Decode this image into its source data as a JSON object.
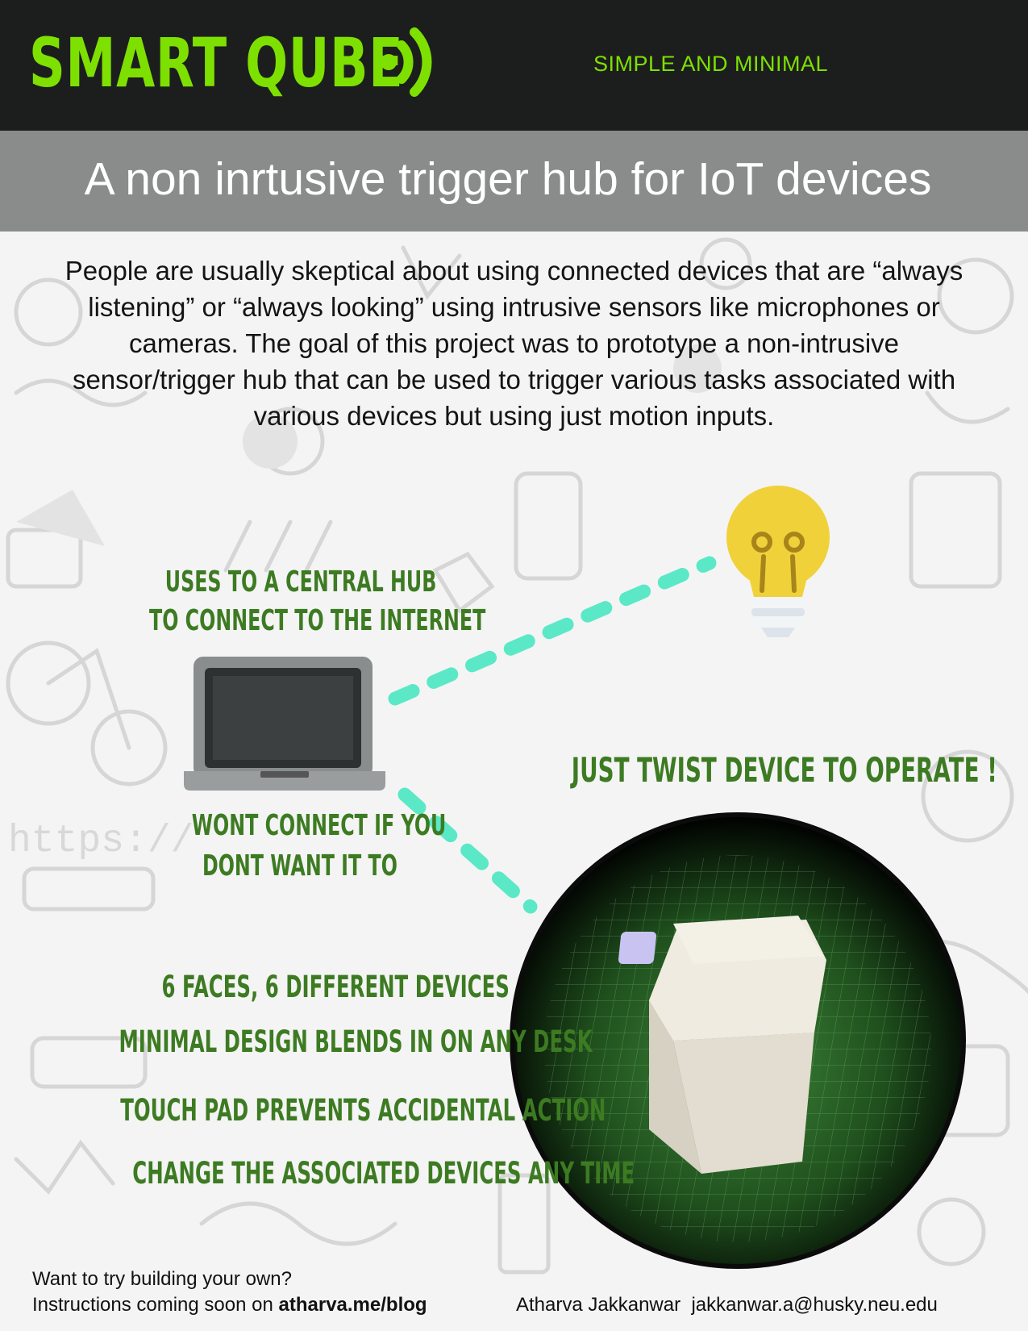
{
  "header": {
    "brand": "SMART QUBE",
    "tagline": "SIMPLE AND MINIMAL"
  },
  "banner": {
    "subtitle": "A non inrtusive trigger hub for IoT devices"
  },
  "intro": {
    "paragraph": "People are usually skeptical about using connected devices that are “always listening” or “always looking” using intrusive sensors like microphones or cameras. The goal of this project was to prototype a non-intrusive sensor/trigger hub that can be used to trigger various tasks associated with various devices but using just motion inputs."
  },
  "diagram": {
    "hub_label_line1": "USES TO A CENTRAL HUB",
    "hub_label_line2": "TO CONNECT TO THE INTERNET",
    "privacy_label_line1": "WONT CONNECT IF YOU",
    "privacy_label_line2": "DONT WANT IT TO",
    "operate_label": "JUST TWIST DEVICE TO OPERATE !",
    "background_doodle_text": "https://"
  },
  "features": [
    "6 FACES, 6 DIFFERENT DEVICES",
    "MINIMAL DESIGN BLENDS IN ON ANY DESK",
    "TOUCH PAD PREVENTS ACCIDENTAL ACTION",
    "CHANGE THE ASSOCIATED DEVICES ANY TIME"
  ],
  "footer": {
    "line1": "Want to try building your own?",
    "line2_prefix": "Instructions coming soon on ",
    "line2_link": "atharva.me/blog",
    "author": "Atharva Jakkanwar",
    "email": "jakkanwar.a@husky.neu.edu"
  },
  "colors": {
    "brand_green": "#7ee000",
    "label_green": "#3d7b22",
    "connector": "#5be8c6",
    "header_bg": "#1c1e1e",
    "banner_bg": "#8a8c8c"
  }
}
